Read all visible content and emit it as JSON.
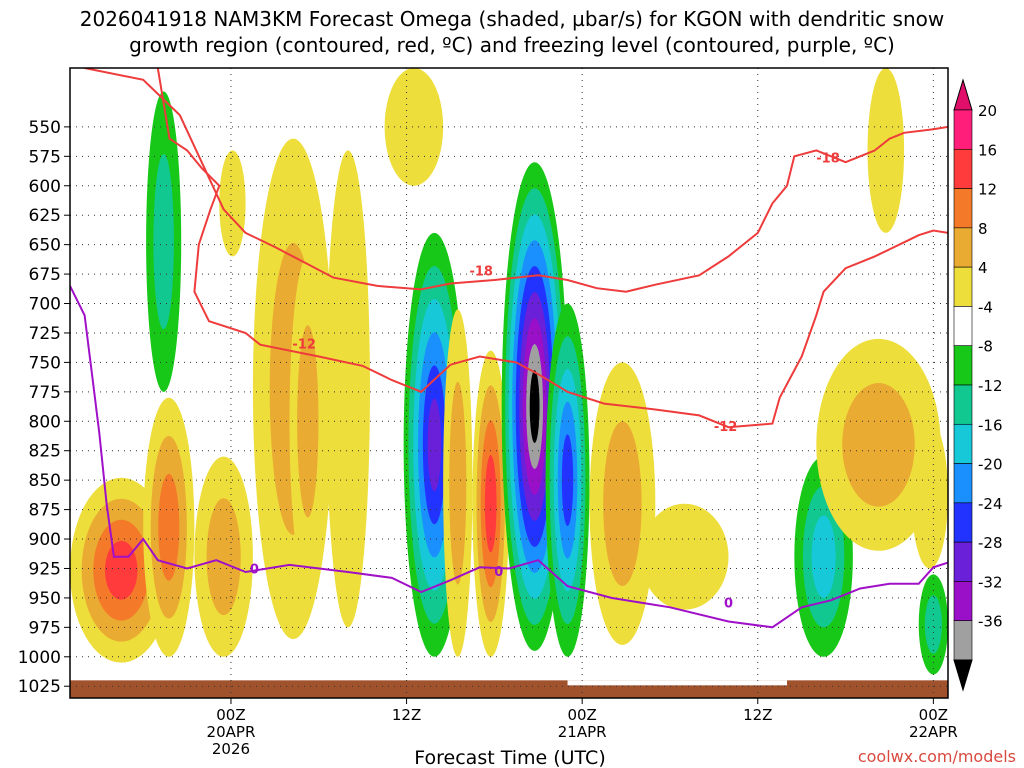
{
  "chart_data": {
    "type": "heatmap",
    "title_line1": "2026041918 NAM3KM Forecast Omega (shaded, µbar/s) for KGON with dendritic snow",
    "title_line2": "growth region (contoured, red, ºC) and freezing level (contoured, purple, ºC)",
    "xlabel": "Forecast Time (UTC)",
    "watermark": "coolwx.com/models",
    "x_range_hours": [
      -5,
      55
    ],
    "y_range_hpa": [
      500,
      1035
    ],
    "y_ticks": [
      {
        "value": 550,
        "label": "550"
      },
      {
        "value": 575,
        "label": "575"
      },
      {
        "value": 600,
        "label": "600"
      },
      {
        "value": 625,
        "label": "625"
      },
      {
        "value": 650,
        "label": "650"
      },
      {
        "value": 675,
        "label": "675"
      },
      {
        "value": 700,
        "label": "700"
      },
      {
        "value": 725,
        "label": "725"
      },
      {
        "value": 750,
        "label": "750"
      },
      {
        "value": 775,
        "label": "775"
      },
      {
        "value": 800,
        "label": "800"
      },
      {
        "value": 825,
        "label": "825"
      },
      {
        "value": 850,
        "label": "850"
      },
      {
        "value": 875,
        "label": "875"
      },
      {
        "value": 900,
        "label": "900"
      },
      {
        "value": 925,
        "label": "925"
      },
      {
        "value": 950,
        "label": "950"
      },
      {
        "value": 975,
        "label": "975"
      },
      {
        "value": 1000,
        "label": "1000"
      },
      {
        "value": 1025,
        "label": "1025"
      }
    ],
    "x_ticks": [
      {
        "hour": 6,
        "lines": [
          "00Z",
          "20APR",
          "2026"
        ]
      },
      {
        "hour": 18,
        "lines": [
          "12Z"
        ]
      },
      {
        "hour": 30,
        "lines": [
          "00Z",
          "21APR"
        ]
      },
      {
        "hour": 42,
        "lines": [
          "12Z"
        ]
      },
      {
        "hour": 54,
        "lines": [
          "00Z",
          "22APR"
        ]
      }
    ],
    "colorbar": [
      {
        "label": "20",
        "color": "#ff1f7a"
      },
      {
        "label": "16",
        "color": "#ff3b3b"
      },
      {
        "label": "12",
        "color": "#f47a2a"
      },
      {
        "label": "8",
        "color": "#e9ab31"
      },
      {
        "label": "4",
        "color": "#eede3b"
      },
      {
        "label": "-4",
        "color": "#ffffff"
      },
      {
        "label": "-8",
        "color": "#18c818"
      },
      {
        "label": "-12",
        "color": "#10c890"
      },
      {
        "label": "-16",
        "color": "#16c8d8"
      },
      {
        "label": "-20",
        "color": "#1a90ff"
      },
      {
        "label": "-24",
        "color": "#2233ff"
      },
      {
        "label": "-28",
        "color": "#6a1fd8"
      },
      {
        "label": "-32",
        "color": "#9a10c8"
      },
      {
        "label": "-36",
        "color": "#a0a0a0"
      }
    ],
    "colorbar_extremes": {
      "top": "#e0106a",
      "bottom": "#000000"
    },
    "omega_blobs": [
      {
        "x0": -5,
        "x1": 2,
        "y0": 848,
        "y1": 1005,
        "levels": [
          4,
          8,
          12,
          16
        ]
      },
      {
        "x0": 0,
        "x1": 3.5,
        "y0": 780,
        "y1": 1000,
        "levels": [
          4,
          8,
          12
        ]
      },
      {
        "x0": 0.2,
        "x1": 2.6,
        "y0": 520,
        "y1": 775,
        "levels": [
          -4,
          -8
        ]
      },
      {
        "x0": 5.2,
        "x1": 7,
        "y0": 570,
        "y1": 660,
        "levels": [
          4
        ]
      },
      {
        "x0": 3.5,
        "x1": 7.5,
        "y0": 830,
        "y1": 1000,
        "levels": [
          4,
          8
        ]
      },
      {
        "x0": 7.5,
        "x1": 13,
        "y0": 560,
        "y1": 985,
        "levels": [
          4,
          8
        ]
      },
      {
        "x0": 10,
        "x1": 12.5,
        "y0": 660,
        "y1": 940,
        "levels": [
          4,
          8
        ]
      },
      {
        "x0": 12.5,
        "x1": 15.5,
        "y0": 570,
        "y1": 975,
        "levels": [
          4
        ]
      },
      {
        "x0": 16.5,
        "x1": 20.5,
        "y0": 500,
        "y1": 600,
        "levels": [
          4
        ]
      },
      {
        "x0": 17.8,
        "x1": 22,
        "y0": 640,
        "y1": 1000,
        "levels": [
          -4,
          -8,
          -12,
          -16,
          -20,
          -24
        ]
      },
      {
        "x0": 20.5,
        "x1": 22.5,
        "y0": 705,
        "y1": 1000,
        "levels": [
          4,
          8
        ]
      },
      {
        "x0": 22.5,
        "x1": 25,
        "y0": 740,
        "y1": 1000,
        "levels": [
          4,
          8,
          12,
          16
        ]
      },
      {
        "x0": 24.5,
        "x1": 29,
        "y0": 580,
        "y1": 995,
        "levels": [
          -4,
          -8,
          -12,
          -16,
          -20,
          -24,
          -28,
          -32,
          -36
        ]
      },
      {
        "x0": 27.5,
        "x1": 30.5,
        "y0": 700,
        "y1": 1000,
        "levels": [
          -4,
          -8,
          -12,
          -16,
          -20
        ]
      },
      {
        "x0": 30.5,
        "x1": 35,
        "y0": 750,
        "y1": 990,
        "levels": [
          4,
          8
        ]
      },
      {
        "x0": 34,
        "x1": 40,
        "y0": 870,
        "y1": 960,
        "levels": [
          4
        ]
      },
      {
        "x0": 44.5,
        "x1": 48.5,
        "y0": 830,
        "y1": 1000,
        "levels": [
          -4,
          -8,
          -12
        ]
      },
      {
        "x0": 46,
        "x1": 54.5,
        "y0": 730,
        "y1": 910,
        "levels": [
          4,
          8
        ]
      },
      {
        "x0": 49.5,
        "x1": 52,
        "y0": 500,
        "y1": 640,
        "levels": [
          4
        ]
      },
      {
        "x0": 53,
        "x1": 55,
        "y0": 930,
        "y1": 1015,
        "levels": [
          -4,
          -8
        ]
      },
      {
        "x0": 52.5,
        "x1": 55,
        "y0": 800,
        "y1": 925,
        "levels": [
          4
        ]
      }
    ],
    "contours": [
      {
        "name": "dendritic-minus12-right",
        "color": "#ee3b3b",
        "label": "-12",
        "label_at": [
          39.8,
          804
        ],
        "points": [
          [
            21,
            752
          ],
          [
            23,
            745
          ],
          [
            25.5,
            750
          ],
          [
            27,
            760
          ],
          [
            29,
            775
          ],
          [
            31.5,
            785
          ],
          [
            35,
            790
          ],
          [
            38,
            795
          ],
          [
            40,
            805
          ],
          [
            43,
            802
          ],
          [
            43.5,
            780
          ],
          [
            45,
            745
          ],
          [
            46,
            710
          ],
          [
            46.5,
            690
          ],
          [
            48,
            670
          ],
          [
            50,
            660
          ],
          [
            52,
            648
          ],
          [
            53,
            642
          ],
          [
            54,
            638
          ],
          [
            55,
            640
          ]
        ]
      },
      {
        "name": "dendritic-minus18",
        "color": "#ee3b3b",
        "label": "-18",
        "label_at": [
          46.8,
          576
        ],
        "points": [
          [
            50,
            570
          ],
          [
            51,
            560
          ],
          [
            52,
            555
          ],
          [
            54,
            552
          ],
          [
            55,
            550
          ]
        ]
      },
      {
        "name": "freezing-level",
        "color": "#a010c8",
        "label": "0",
        "label_at": [
          24.3,
          927
        ],
        "points": [
          [
            -5,
            685
          ],
          [
            -4,
            710
          ],
          [
            -3.5,
            760
          ],
          [
            -3,
            810
          ],
          [
            -2.5,
            870
          ],
          [
            -2,
            915
          ],
          [
            -1,
            915
          ],
          [
            0,
            900
          ],
          [
            1,
            918
          ],
          [
            3,
            925
          ],
          [
            5,
            918
          ],
          [
            7,
            928
          ],
          [
            10,
            922
          ],
          [
            14,
            928
          ],
          [
            17,
            933
          ],
          [
            19,
            945
          ],
          [
            21,
            935
          ],
          [
            23,
            924
          ],
          [
            25,
            925
          ],
          [
            27,
            918
          ],
          [
            29,
            940
          ],
          [
            32,
            950
          ],
          [
            36,
            958
          ],
          [
            40,
            970
          ],
          [
            43,
            975
          ],
          [
            45,
            958
          ],
          [
            47,
            952
          ],
          [
            49,
            942
          ],
          [
            51,
            938
          ],
          [
            53,
            938
          ],
          [
            54,
            924
          ],
          [
            55,
            920
          ]
        ]
      }
    ],
    "contour_minus18_left_label": {
      "text": "-18",
      "at": [
        23.1,
        672
      ]
    },
    "contour_minus12_left_label": {
      "text": "-12",
      "at": [
        11,
        734
      ]
    },
    "contour_0_left_label": {
      "text": "0",
      "at": [
        7.6,
        925
      ]
    },
    "contour_0_right_label": {
      "text": "0",
      "at": [
        40,
        954
      ]
    }
  }
}
